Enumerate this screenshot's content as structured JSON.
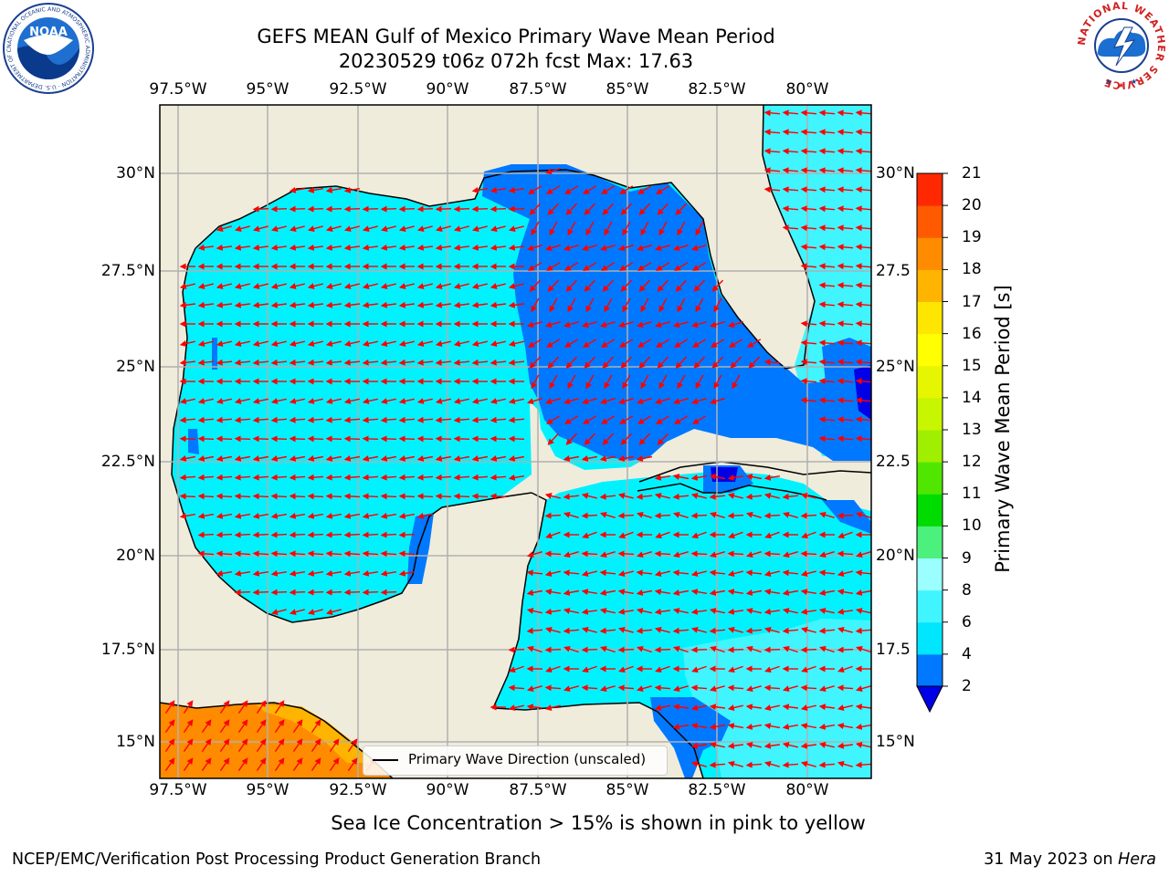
{
  "title": {
    "line1": "GEFS MEAN Gulf of Mexico Primary Wave Mean Period",
    "line2": "20230529 t06z 072h fcst   Max: 17.63"
  },
  "logos": {
    "left": "noaa-logo",
    "right": "national-weather-service-logo",
    "noaa_text": "NOAA",
    "noaa_ring_text": "NATIONAL OCEANIC AND ATMOSPHERIC ADMINISTRATION · U.S. DEPARTMENT OF COMMERCE",
    "nws_ring_text": "NATIONAL WEATHER SERVICE"
  },
  "map": {
    "lon_ticks": [
      "97.5°W",
      "95°W",
      "92.5°W",
      "90°W",
      "87.5°W",
      "85°W",
      "82.5°W",
      "80°W"
    ],
    "lat_ticks": [
      "30°N",
      "27.5°N",
      "25°N",
      "22.5°N",
      "20°N",
      "17.5°N",
      "15°N"
    ],
    "lat_ticks_right": [
      "30°N",
      "27.5",
      "25°N",
      "22.5",
      "20°N",
      "17.5",
      "15°N"
    ],
    "extent": {
      "lon_min": -98.0,
      "lon_max": -78.2,
      "lat_min": 14.1,
      "lat_max": 31.8
    },
    "land_color": "#efecdc",
    "arrow_color": "#ff0000",
    "legend_label": "Primary Wave Direction (unscaled)"
  },
  "colorbar": {
    "label": "Primary Wave Mean Period [s]",
    "ticks": [
      "2",
      "4",
      "6",
      "8",
      "9",
      "10",
      "11",
      "12",
      "13",
      "14",
      "15",
      "16",
      "17",
      "18",
      "19",
      "20",
      "21"
    ],
    "colors": [
      "#0078ff",
      "#00e6ff",
      "#40f5ff",
      "#9cffff",
      "#4cf07c",
      "#00dc00",
      "#50e600",
      "#a0ee00",
      "#c8f500",
      "#e6f500",
      "#ffff00",
      "#ffe600",
      "#ffb400",
      "#ff8c00",
      "#ff5a00",
      "#ff2800"
    ],
    "under_color": "#0000e6"
  },
  "notes": {
    "seaice": "Sea Ice Concentration > 15% is shown in pink to yellow",
    "footer_left": "NCEP/EMC/Verification Post Processing Product Generation Branch",
    "footer_date": "31 May 2023 on ",
    "footer_host": "Hera"
  }
}
